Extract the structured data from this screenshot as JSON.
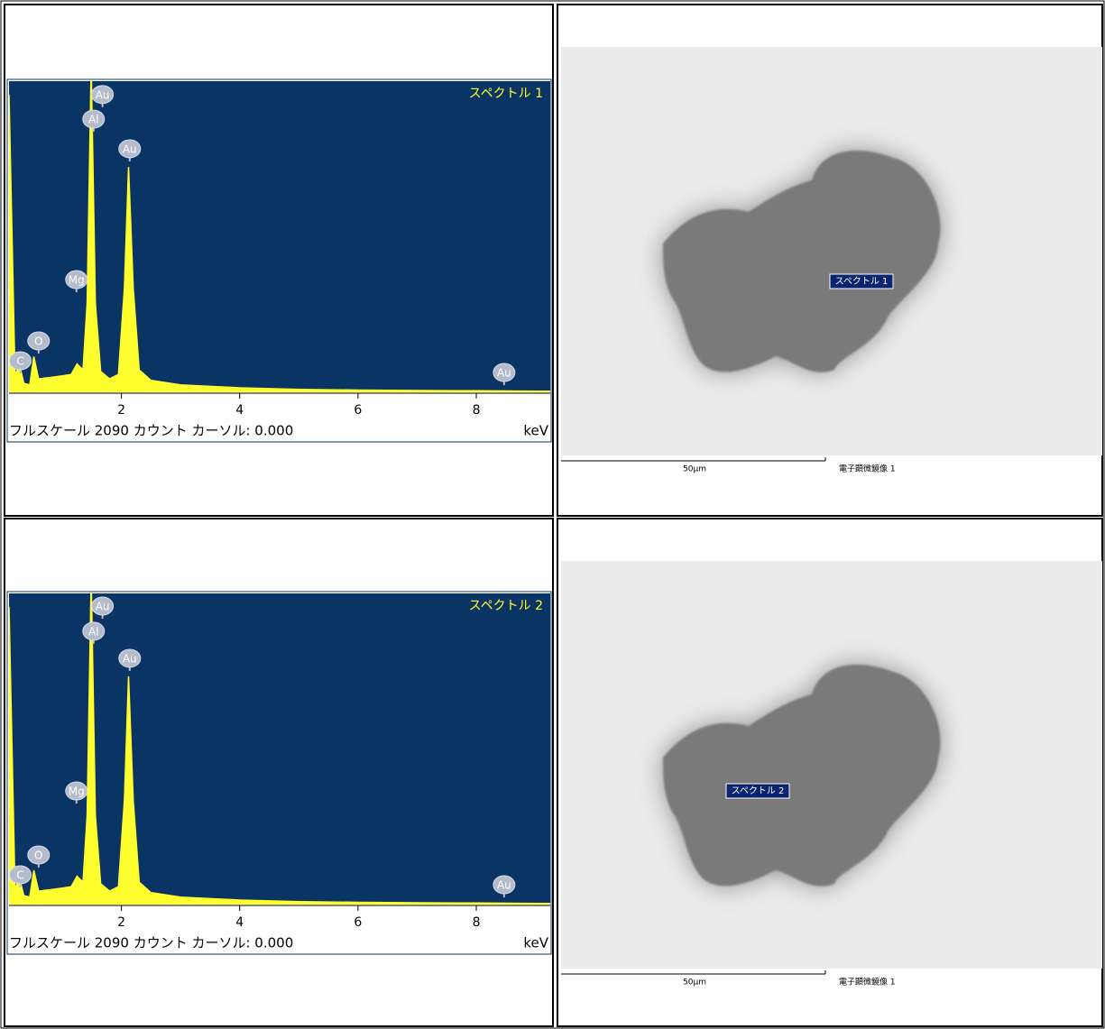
{
  "chart_data": [
    {
      "type": "area",
      "title": "スペクトル 1",
      "xlabel": "keV",
      "footer": "フルスケール 2090 カウント カーソル: 0.000",
      "color": "#ffff30",
      "background": "#0a3464",
      "x": [
        0.1,
        0.2,
        0.28,
        0.35,
        0.45,
        0.52,
        0.6,
        0.8,
        1.0,
        1.15,
        1.25,
        1.35,
        1.42,
        1.49,
        1.56,
        1.65,
        1.8,
        1.95,
        2.05,
        2.12,
        2.2,
        2.3,
        2.5,
        3,
        4,
        5,
        6,
        7,
        8,
        9,
        9.25
      ],
      "values": [
        2000,
        120,
        180,
        60,
        50,
        240,
        90,
        100,
        110,
        120,
        190,
        150,
        600,
        2200,
        600,
        140,
        90,
        120,
        700,
        1514,
        700,
        150,
        80,
        50,
        30,
        20,
        15,
        12,
        10,
        8,
        8
      ],
      "xlim": [
        0.1,
        9.25
      ],
      "xticks": [
        2,
        4,
        6,
        8
      ],
      "ylim": [
        0,
        2090
      ],
      "annotations": [
        {
          "text": "Au",
          "x": 1.68,
          "y": 2000
        },
        {
          "text": "Al",
          "x": 1.53,
          "y": 1835
        },
        {
          "text": "Au",
          "x": 2.14,
          "y": 1636
        },
        {
          "text": "Mg",
          "x": 1.24,
          "y": 757
        },
        {
          "text": "O",
          "x": 0.6,
          "y": 345
        },
        {
          "text": "C",
          "x": 0.29,
          "y": 212
        },
        {
          "text": "Au",
          "x": 8.47,
          "y": 133
        }
      ]
    },
    {
      "type": "area",
      "title": "スペクトル 2",
      "xlabel": "keV",
      "footer": "フルスケール 2090 カウント カーソル: 0.000",
      "color": "#ffff30",
      "background": "#0a3464",
      "x": [
        0.1,
        0.2,
        0.28,
        0.35,
        0.45,
        0.52,
        0.6,
        0.8,
        1.0,
        1.15,
        1.25,
        1.35,
        1.42,
        1.49,
        1.56,
        1.65,
        1.8,
        1.95,
        2.05,
        2.12,
        2.2,
        2.3,
        2.5,
        3,
        4,
        5,
        6,
        7,
        8,
        9,
        9.25
      ],
      "values": [
        2000,
        110,
        170,
        60,
        50,
        230,
        90,
        100,
        110,
        120,
        190,
        150,
        600,
        2200,
        600,
        140,
        90,
        120,
        700,
        1533,
        700,
        150,
        80,
        50,
        30,
        20,
        15,
        12,
        10,
        8,
        8
      ],
      "xlim": [
        0.1,
        9.25
      ],
      "xticks": [
        2,
        4,
        6,
        8
      ],
      "ylim": [
        0,
        2090
      ],
      "annotations": [
        {
          "text": "Au",
          "x": 1.68,
          "y": 2005
        },
        {
          "text": "Al",
          "x": 1.53,
          "y": 1836
        },
        {
          "text": "Au",
          "x": 2.14,
          "y": 1654
        },
        {
          "text": "Mg",
          "x": 1.24,
          "y": 763
        },
        {
          "text": "O",
          "x": 0.6,
          "y": 333
        },
        {
          "text": "C",
          "x": 0.29,
          "y": 200
        },
        {
          "text": "Au",
          "x": 8.47,
          "y": 133
        }
      ]
    }
  ],
  "images": [
    {
      "spectrum_label": "スペクトル 1",
      "scale": "50μm",
      "caption": "電子顕微鏡像 1"
    },
    {
      "spectrum_label": "スペクトル 2",
      "scale": "50μm",
      "caption": "電子顕微鏡像 1"
    }
  ]
}
